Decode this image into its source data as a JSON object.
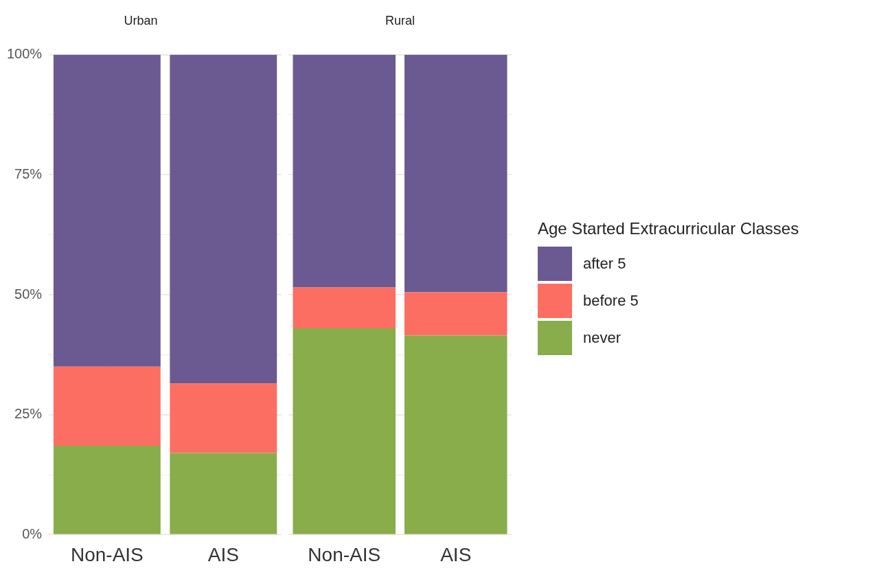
{
  "chart_data": [
    {
      "type": "bar",
      "title": "Urban",
      "categories": [
        "Non-AIS",
        "AIS"
      ],
      "stacked": true,
      "ylim": [
        0,
        100
      ],
      "yticks": [
        {
          "value": 0,
          "label": "0%"
        },
        {
          "value": 12.5,
          "label": null
        },
        {
          "value": 25,
          "label": "25%"
        },
        {
          "value": 37.5,
          "label": null
        },
        {
          "value": 50,
          "label": "50%"
        },
        {
          "value": 62.5,
          "label": null
        },
        {
          "value": 75,
          "label": "75%"
        },
        {
          "value": 87.5,
          "label": null
        },
        {
          "value": 100,
          "label": "100%"
        }
      ],
      "grid": true,
      "legend": false,
      "series": [
        {
          "color": "#88ad4a",
          "values": [
            18.5,
            17
          ]
        },
        {
          "color": "#fd6e62",
          "values": [
            16.5,
            14.5
          ]
        },
        {
          "color": "#6b5a91",
          "values": [
            65,
            68.5
          ]
        }
      ]
    },
    {
      "type": "bar",
      "title": "Rural",
      "categories": [
        "Non-AIS",
        "AIS"
      ],
      "stacked": true,
      "ylim": [
        0,
        100
      ],
      "yticks": [
        {
          "value": 0,
          "label": null
        },
        {
          "value": 12.5,
          "label": null
        },
        {
          "value": 25,
          "label": null
        },
        {
          "value": 37.5,
          "label": null
        },
        {
          "value": 50,
          "label": null
        },
        {
          "value": 62.5,
          "label": null
        },
        {
          "value": 75,
          "label": null
        },
        {
          "value": 87.5,
          "label": null
        },
        {
          "value": 100,
          "label": null
        }
      ],
      "grid": true,
      "legend": "right",
      "legend_title": "Age Started Extracurricular Classes",
      "tick_labels": "x",
      "series": [
        {
          "name": "never",
          "color": "#88ad4a",
          "values": [
            43,
            41.5
          ]
        },
        {
          "name": "before 5",
          "color": "#fd6e62",
          "values": [
            8.5,
            9
          ]
        },
        {
          "name": "after 5",
          "color": "#6b5a91",
          "values": [
            48.5,
            49.5
          ]
        }
      ]
    }
  ]
}
